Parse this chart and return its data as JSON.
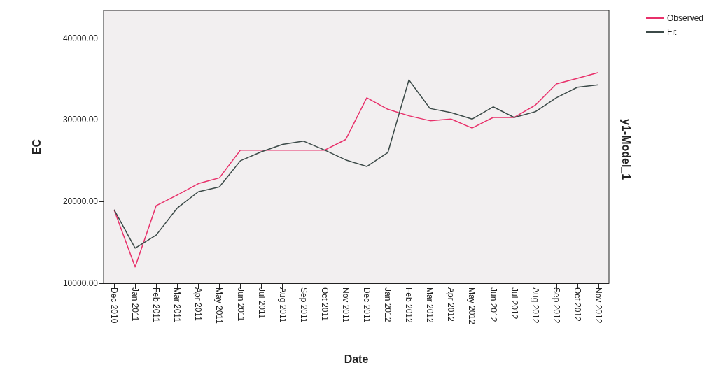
{
  "chart_data": {
    "type": "line",
    "xlabel": "Date",
    "ylabel": "EC",
    "annotations": [
      "y1-Model_1"
    ],
    "categories": [
      "Dec 2010",
      "Jan 2011",
      "Feb 2011",
      "Mar 2011",
      "Apr 2011",
      "May 2011",
      "Jun 2011",
      "Jul 2011",
      "Aug 2011",
      "Sep 2011",
      "Oct 2011",
      "Nov 2011",
      "Dec 2011",
      "Jan 2012",
      "Feb 2012",
      "Mar 2012",
      "Apr 2012",
      "May 2012",
      "Jun 2012",
      "Jul 2012",
      "Aug 2012",
      "Sep 2012",
      "Oct 2012",
      "Nov 2012"
    ],
    "series": [
      {
        "name": "Observed",
        "color": "#e8306a",
        "values": [
          19000,
          12000,
          19500,
          20800,
          22200,
          22900,
          26300,
          26300,
          26300,
          26300,
          26300,
          27600,
          32700,
          31300,
          30500,
          29900,
          30100,
          29000,
          30300,
          30300,
          31800,
          34400,
          35100,
          35800
        ]
      },
      {
        "name": "Fit",
        "color": "#3c4a48",
        "values": [
          19000,
          14300,
          15900,
          19200,
          21200,
          21800,
          25000,
          26100,
          27000,
          27400,
          26300,
          25100,
          24300,
          26000,
          34900,
          31400,
          30900,
          30100,
          31600,
          30300,
          31000,
          32700,
          34000,
          34300
        ]
      }
    ],
    "ylim": [
      10000,
      43400
    ],
    "yticks": [
      {
        "value": 10000,
        "label": "10000.00"
      },
      {
        "value": 20000,
        "label": "20000.00"
      },
      {
        "value": 30000,
        "label": "30000.00"
      },
      {
        "value": 40000,
        "label": "40000.00"
      }
    ],
    "grid": false,
    "legend": "top right",
    "marker": "none",
    "line_style": "solid"
  }
}
